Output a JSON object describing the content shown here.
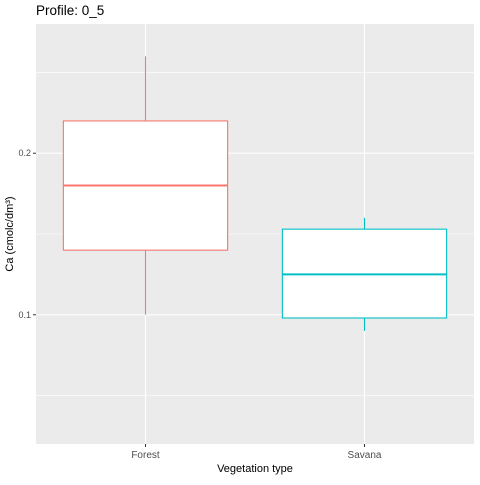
{
  "chart_data": {
    "type": "box",
    "title": "Profile: 0_5",
    "xlabel": "Vegetation type",
    "ylabel": "Ca (cmolc/dm³)",
    "ylim": [
      0.02,
      0.28
    ],
    "y_ticks": [
      0.1,
      0.2
    ],
    "y_tick_labels": [
      "0.1",
      "0.2"
    ],
    "grid": true,
    "categories": [
      "Forest",
      "Savana"
    ],
    "boxes": [
      {
        "category": "Forest",
        "min": 0.1,
        "q1": 0.14,
        "median": 0.18,
        "q3": 0.22,
        "max": 0.26,
        "color": "#F8766D"
      },
      {
        "category": "Savana",
        "min": 0.09,
        "q1": 0.098,
        "median": 0.125,
        "q3": 0.153,
        "max": 0.16,
        "color": "#00BFC4"
      }
    ],
    "panel_background": "#EBEBEB",
    "grid_color": "#FFFFFF"
  }
}
